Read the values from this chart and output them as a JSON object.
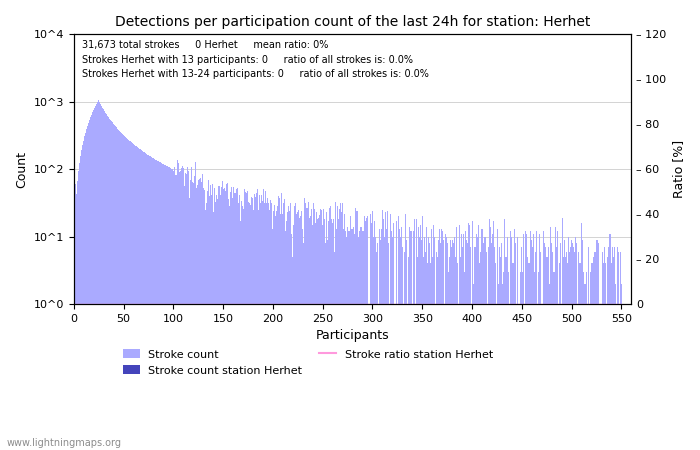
{
  "title": "Detections per participation count of the last 24h for station: Herhet",
  "xlabel": "Participants",
  "ylabel_left": "Count",
  "ylabel_right": "Ratio [%]",
  "annotation_lines": [
    "31,673 total strokes     0 Herhet     mean ratio: 0%",
    "Strokes Herhet with 13 participants: 0     ratio of all strokes is: 0.0%",
    "Strokes Herhet with 13-24 participants: 0     ratio of all strokes is: 0.0%"
  ],
  "bar_color_light": "#aaaaff",
  "bar_color_dark": "#4444bb",
  "ratio_line_color": "#ff99dd",
  "xlim": [
    0,
    560
  ],
  "ylim_log": [
    1,
    10000
  ],
  "ylim_right": [
    0,
    120
  ],
  "yticks_right": [
    0,
    20,
    40,
    60,
    80,
    100,
    120
  ],
  "xticks": [
    0,
    50,
    100,
    150,
    200,
    250,
    300,
    350,
    400,
    450,
    500,
    550
  ],
  "yticks_left_labels": [
    "10^0",
    "10^1",
    "10^2",
    "10^3",
    "10^4"
  ],
  "yticks_left_vals": [
    1,
    10,
    100,
    1000,
    10000
  ],
  "watermark": "www.lightningmaps.org",
  "legend_entries": [
    "Stroke count",
    "Stroke count station Herhet",
    "Stroke ratio station Herhet"
  ],
  "figsize": [
    7.0,
    4.5
  ],
  "dpi": 100
}
